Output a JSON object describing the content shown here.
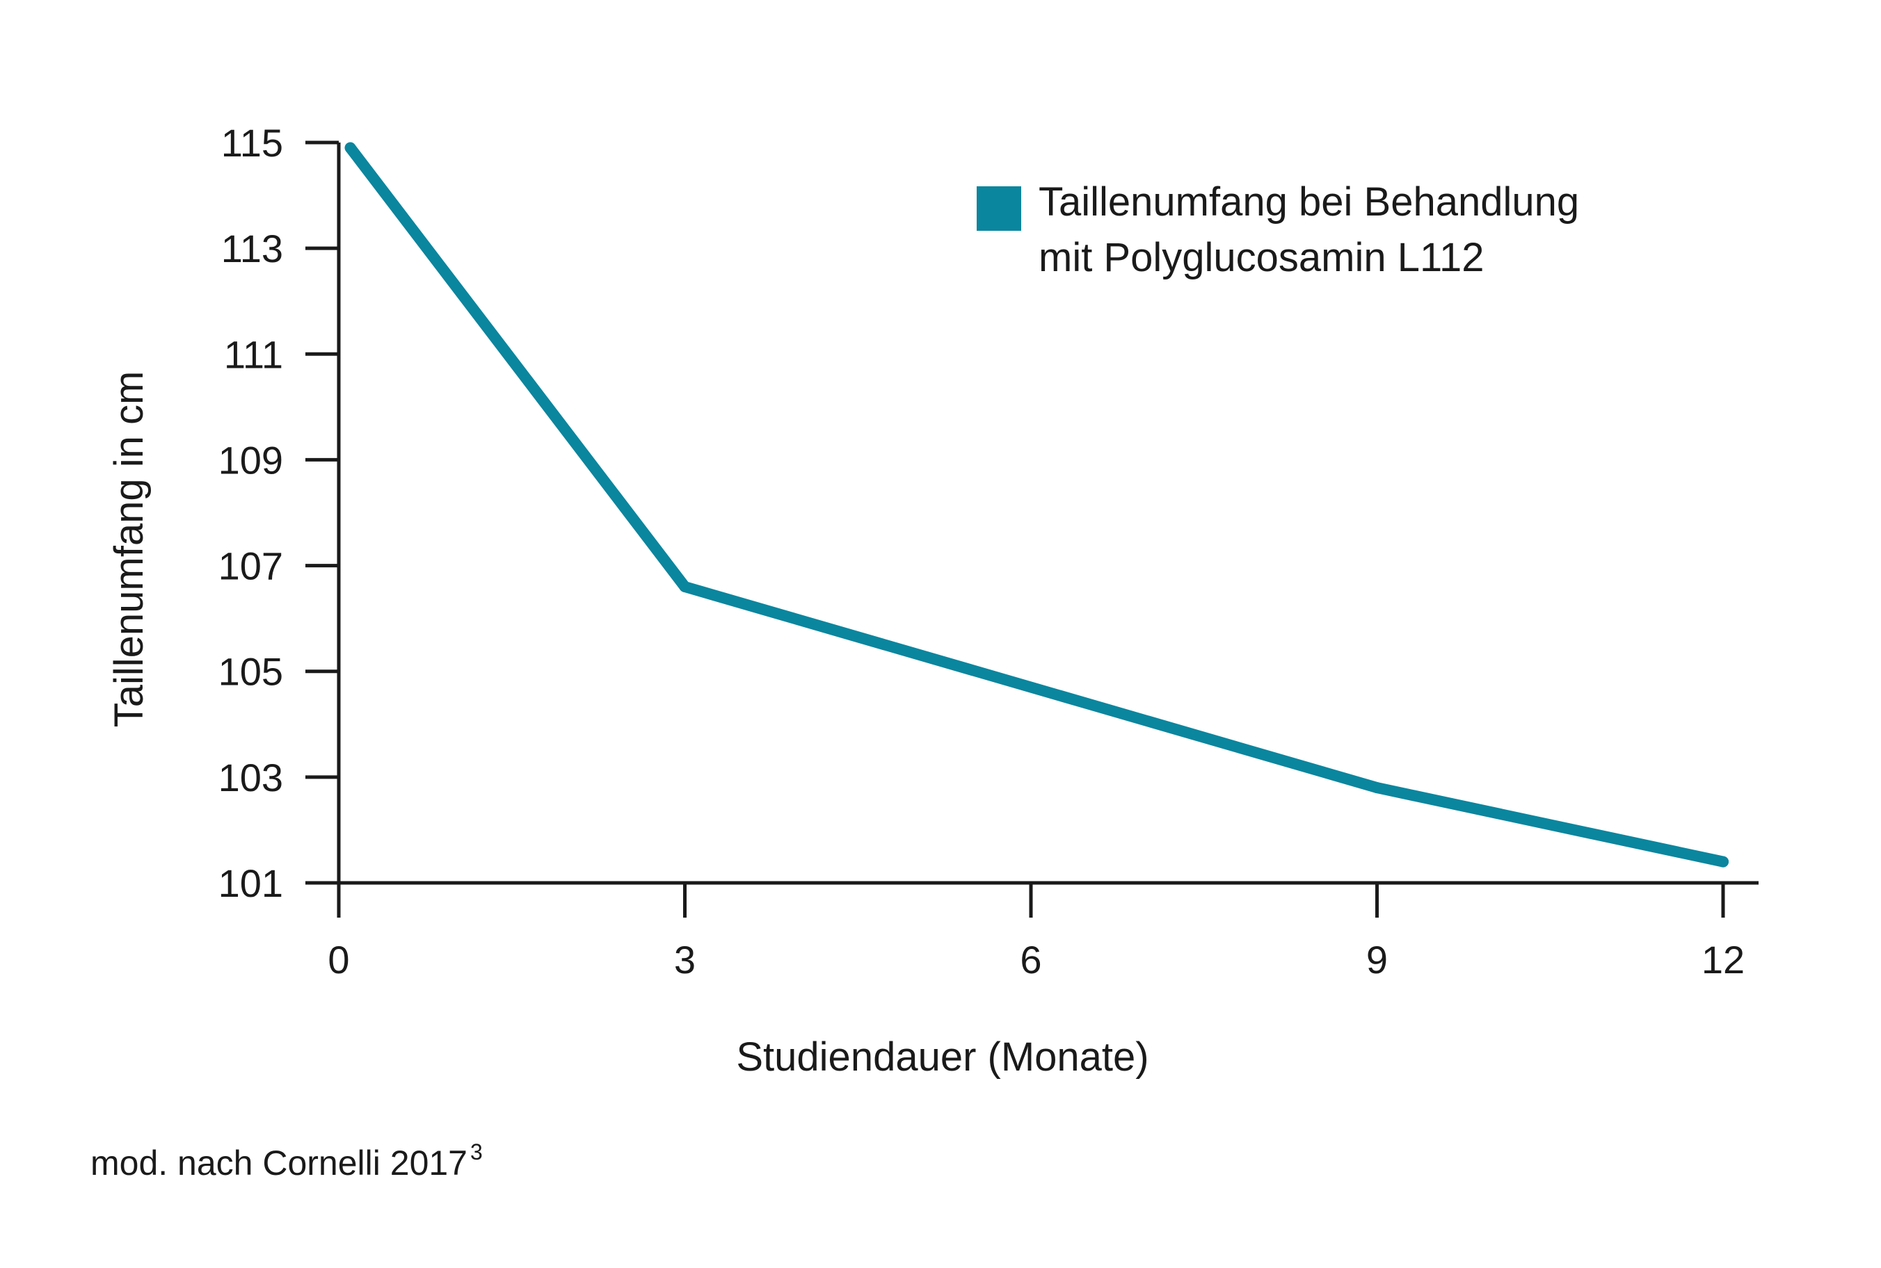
{
  "chart_data": {
    "type": "line",
    "title": "",
    "xlabel": "Studiendauer (Monate)",
    "ylabel": "Taillenumfang in cm",
    "x_ticks": [
      0,
      3,
      6,
      9,
      12
    ],
    "y_ticks": [
      101,
      103,
      105,
      107,
      109,
      111,
      113,
      115
    ],
    "xlim": [
      0,
      12.4
    ],
    "ylim": [
      101,
      115.3
    ],
    "grid": false,
    "legend_position": "top-right",
    "series": [
      {
        "name": "Taillenumfang bei Behandlung mit Polyglucosamin L112",
        "name_lines": [
          "Taillenumfang bei Behandlung",
          "mit Polyglucosamin L112"
        ],
        "color": "#0a869e",
        "x": [
          0.1,
          3,
          9,
          12
        ],
        "y": [
          114.9,
          106.6,
          102.8,
          101.4
        ]
      }
    ]
  },
  "source": {
    "text": "mod. nach Cornelli 2017",
    "superscript": "3"
  }
}
